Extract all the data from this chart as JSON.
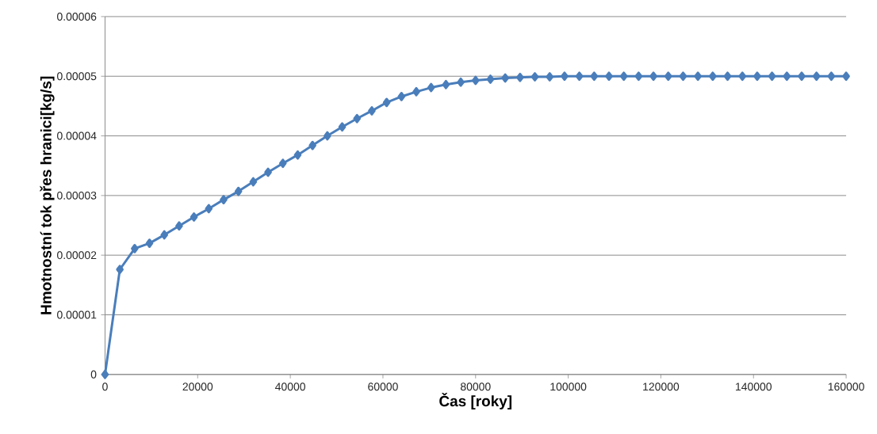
{
  "chart_data": {
    "type": "line",
    "xlabel": "Čas [roky]",
    "ylabel": "Hmotnostní tok přes hranici[kg/s]",
    "x": [
      0,
      3200,
      6400,
      9600,
      12800,
      16000,
      19200,
      22400,
      25600,
      28800,
      32000,
      35200,
      38400,
      41600,
      44800,
      48000,
      51200,
      54400,
      57600,
      60800,
      64000,
      67200,
      70400,
      73600,
      76800,
      80000,
      83200,
      86400,
      89600,
      92800,
      96000,
      99200,
      102400,
      105600,
      108800,
      112000,
      115200,
      118400,
      121600,
      124800,
      128000,
      131200,
      134400,
      137600,
      140800,
      144000,
      147200,
      150400,
      153600,
      156800,
      160000
    ],
    "series": [
      {
        "color": "#4a7ebb",
        "values": [
          0,
          1.76e-05,
          2.11e-05,
          2.2e-05,
          2.34e-05,
          2.49e-05,
          2.64e-05,
          2.78e-05,
          2.93e-05,
          3.07e-05,
          3.23e-05,
          3.39e-05,
          3.54e-05,
          3.68e-05,
          3.84e-05,
          4e-05,
          4.15e-05,
          4.29e-05,
          4.42e-05,
          4.56e-05,
          4.66e-05,
          4.74e-05,
          4.81e-05,
          4.86e-05,
          4.9e-05,
          4.93e-05,
          4.95e-05,
          4.97e-05,
          4.98e-05,
          4.99e-05,
          4.99e-05,
          5e-05,
          5e-05,
          5e-05,
          5e-05,
          5e-05,
          5e-05,
          5e-05,
          5e-05,
          5e-05,
          5e-05,
          5e-05,
          5e-05,
          5e-05,
          5e-05,
          5e-05,
          5e-05,
          5e-05,
          5e-05,
          5e-05,
          5e-05
        ]
      }
    ],
    "xlim": [
      0,
      160000
    ],
    "xticks": [
      0,
      20000,
      40000,
      60000,
      80000,
      100000,
      120000,
      140000,
      160000
    ],
    "ylim": [
      0,
      6e-05
    ],
    "yticks": [
      {
        "value": 0,
        "label": "0"
      },
      {
        "value": 1e-05,
        "label": "0.00001"
      },
      {
        "value": 2e-05,
        "label": "0.00002"
      },
      {
        "value": 3e-05,
        "label": "0.00003"
      },
      {
        "value": 4e-05,
        "label": "0.00004"
      },
      {
        "value": 5e-05,
        "label": "0.00005"
      },
      {
        "value": 6e-05,
        "label": "0.00006"
      }
    ],
    "grid": "y",
    "marker": "diamond",
    "line_style": "solid"
  }
}
